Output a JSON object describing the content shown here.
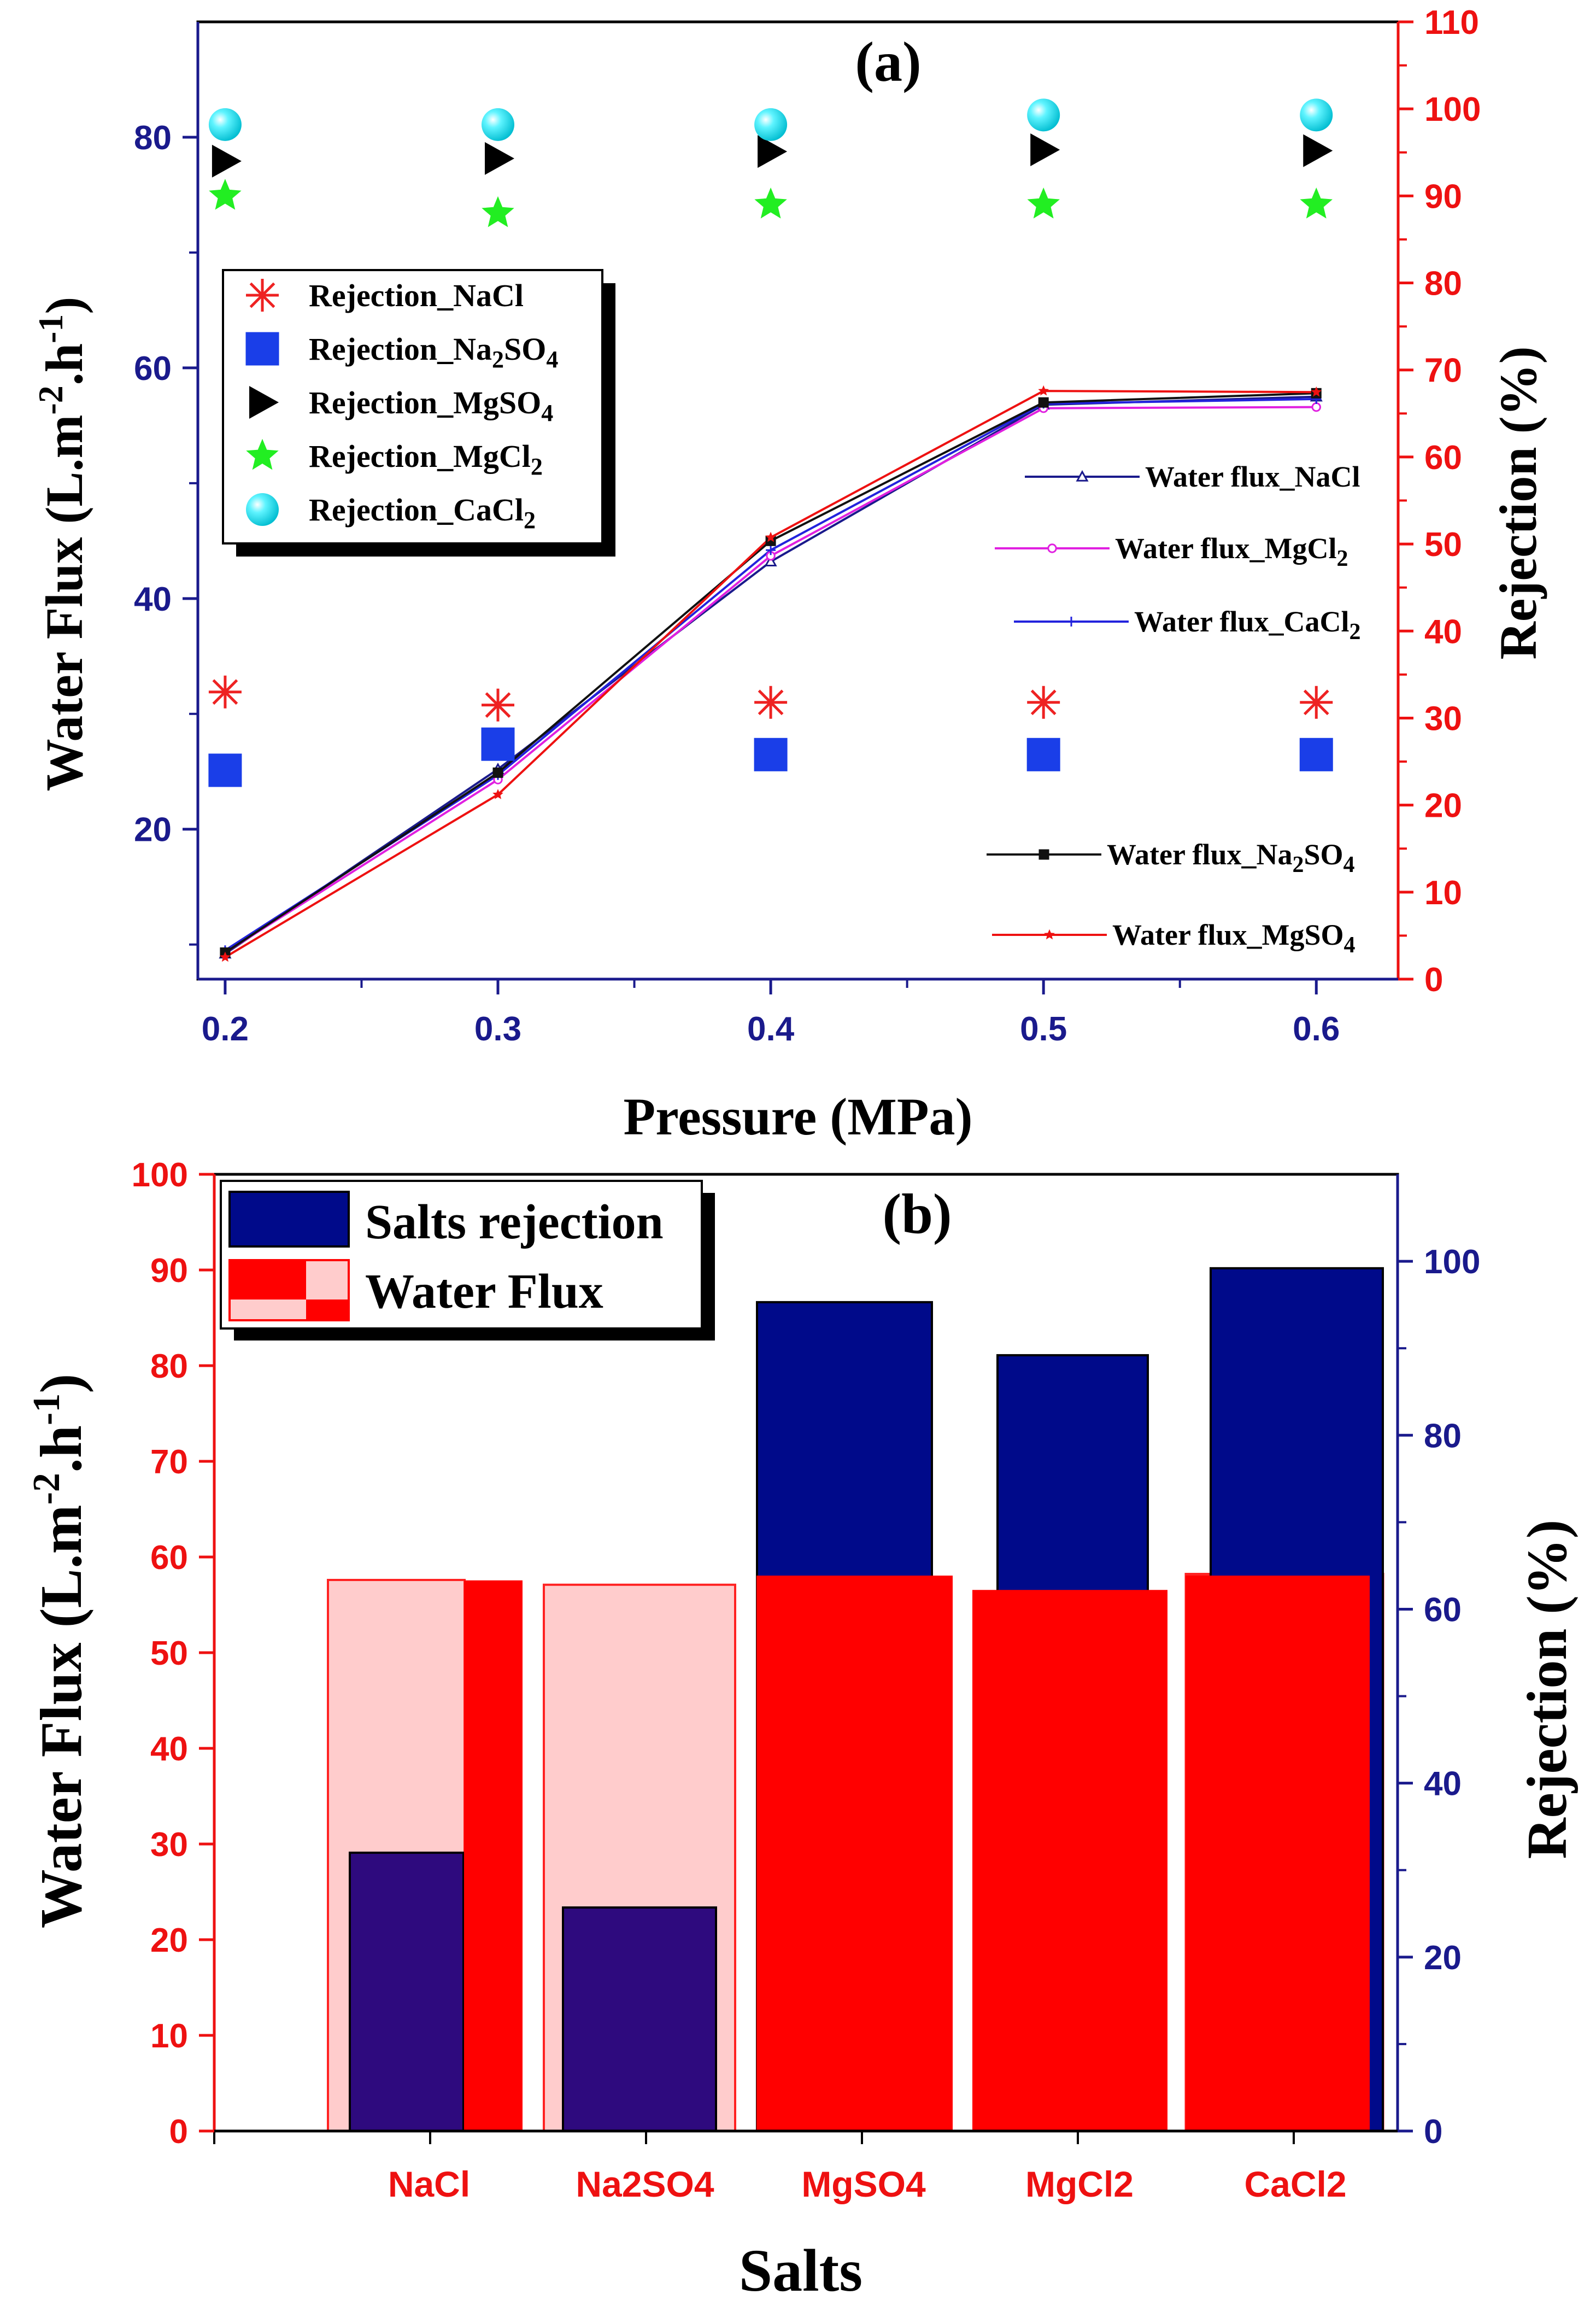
{
  "chart_data": [
    {
      "type": "line",
      "panel_label": "(a)",
      "xlabel": "Pressure (MPa)",
      "ylabel_parts": [
        "Water Flux (L.m",
        "-2",
        ".h",
        "-1",
        ")"
      ],
      "y2label": "Rejection (%)",
      "xlim": [
        0.19,
        0.63
      ],
      "ylim": [
        7,
        90
      ],
      "y2lim": [
        0,
        110
      ],
      "x": [
        0.2,
        0.3,
        0.4,
        0.5,
        0.6
      ],
      "x_tick_labels": [
        "0.2",
        "0.3",
        "0.4",
        "0.5",
        "0.6"
      ],
      "y_ticks": [
        20,
        40,
        60,
        80
      ],
      "y2_ticks": [
        0,
        10,
        20,
        30,
        40,
        50,
        60,
        70,
        80,
        90,
        100,
        110
      ],
      "flux_series": [
        {
          "name": "Water flux_NaCl",
          "label_main": "Water flux_NaCl",
          "label_sub": "",
          "label_tail": "",
          "color": "#1a1a8c",
          "marker": "triangle",
          "values": [
            9.2,
            25.2,
            43.2,
            56.8,
            57.5
          ]
        },
        {
          "name": "Water flux_MgCl2",
          "label_main": "Water flux_MgCl",
          "label_sub": "2",
          "label_tail": "",
          "color": "#e020e0",
          "marker": "circle",
          "values": [
            9.3,
            24.3,
            43.7,
            56.5,
            56.6
          ]
        },
        {
          "name": "Water flux_CaCl2",
          "label_main": "Water flux_CaCl",
          "label_sub": "2",
          "label_tail": "",
          "color": "#2222dd",
          "marker": "plus",
          "values": [
            9.5,
            24.7,
            44.2,
            56.9,
            57.3
          ]
        },
        {
          "name": "Water flux_Na2SO4",
          "label_main": "Water flux_Na",
          "label_sub": "2",
          "label_tail": "SO",
          "label_sub2": "4",
          "color": "#111111",
          "marker": "square",
          "values": [
            9.3,
            24.9,
            45.0,
            57.0,
            57.8
          ]
        },
        {
          "name": "Water flux_MgSO4",
          "label_main": "Water flux_MgSO",
          "label_sub": "4",
          "label_tail": "",
          "color": "#ee1111",
          "marker": "star",
          "values": [
            8.9,
            23.0,
            45.3,
            58.0,
            57.9
          ]
        }
      ],
      "rejection_series": [
        {
          "name": "Rejection_NaCl",
          "label_main": "Rejection_NaCl",
          "label_sub": "",
          "label_tail": "",
          "color": "#ee2222",
          "marker": "asterisk",
          "values": [
            33.0,
            31.5,
            31.8,
            31.8,
            31.8
          ]
        },
        {
          "name": "Rejection_Na2SO4",
          "label_main": "Rejection_Na",
          "label_sub": "2",
          "label_tail": "SO",
          "label_sub2": "4",
          "color": "#1a3ee8",
          "marker": "square",
          "values": [
            24.0,
            27.0,
            25.8,
            25.8,
            25.8
          ]
        },
        {
          "name": "Rejection_MgSO4",
          "label_main": "Rejection_MgSO",
          "label_sub": "4",
          "label_tail": "",
          "color": "#000000",
          "marker": "right-triangle",
          "values": [
            94.0,
            94.3,
            95.1,
            95.3,
            95.2
          ]
        },
        {
          "name": "Rejection_MgCl2",
          "label_main": "Rejection_MgCl",
          "label_sub": "2",
          "label_tail": "",
          "color": "#22ee22",
          "marker": "star",
          "values": [
            90.0,
            88.0,
            89.0,
            89.0,
            89.0
          ]
        },
        {
          "name": "Rejection_CaCl2",
          "label_main": "Rejection_CaCl",
          "label_sub": "2",
          "label_tail": "",
          "color": "#22e0ee",
          "marker": "sphere",
          "values": [
            98.2,
            98.2,
            98.2,
            99.3,
            99.3
          ]
        }
      ]
    },
    {
      "type": "bar",
      "panel_label": "(b)",
      "xlabel": "Salts",
      "ylabel_parts": [
        "Water Flux (L.m",
        "-2",
        ".h",
        "-1",
        ")"
      ],
      "y2label": "Rejection (%)",
      "categories": [
        "NaCl",
        "Na2SO4",
        "MgSO4",
        "MgCl2",
        "CaCl2"
      ],
      "ylim": [
        0,
        100
      ],
      "y2lim": [
        0,
        110
      ],
      "y_ticks": [
        0,
        10,
        20,
        30,
        40,
        50,
        60,
        70,
        80,
        90,
        100
      ],
      "y2_ticks": [
        0,
        20,
        40,
        60,
        80,
        100
      ],
      "series": [
        {
          "name": "Water Flux",
          "values": [
            57.5,
            57.0,
            58.0,
            56.5,
            58.0
          ]
        },
        {
          "name": "Salts rejection",
          "values": [
            32.0,
            25.7,
            95.3,
            89.2,
            99.2
          ]
        },
        {
          "name": "Water Flux (shaded)",
          "values": [
            57.6,
            57.1,
            58.0,
            56.5,
            58.2
          ]
        }
      ],
      "legend": [
        "Salts rejection",
        "Water Flux"
      ],
      "legend_position": "top-left"
    }
  ]
}
